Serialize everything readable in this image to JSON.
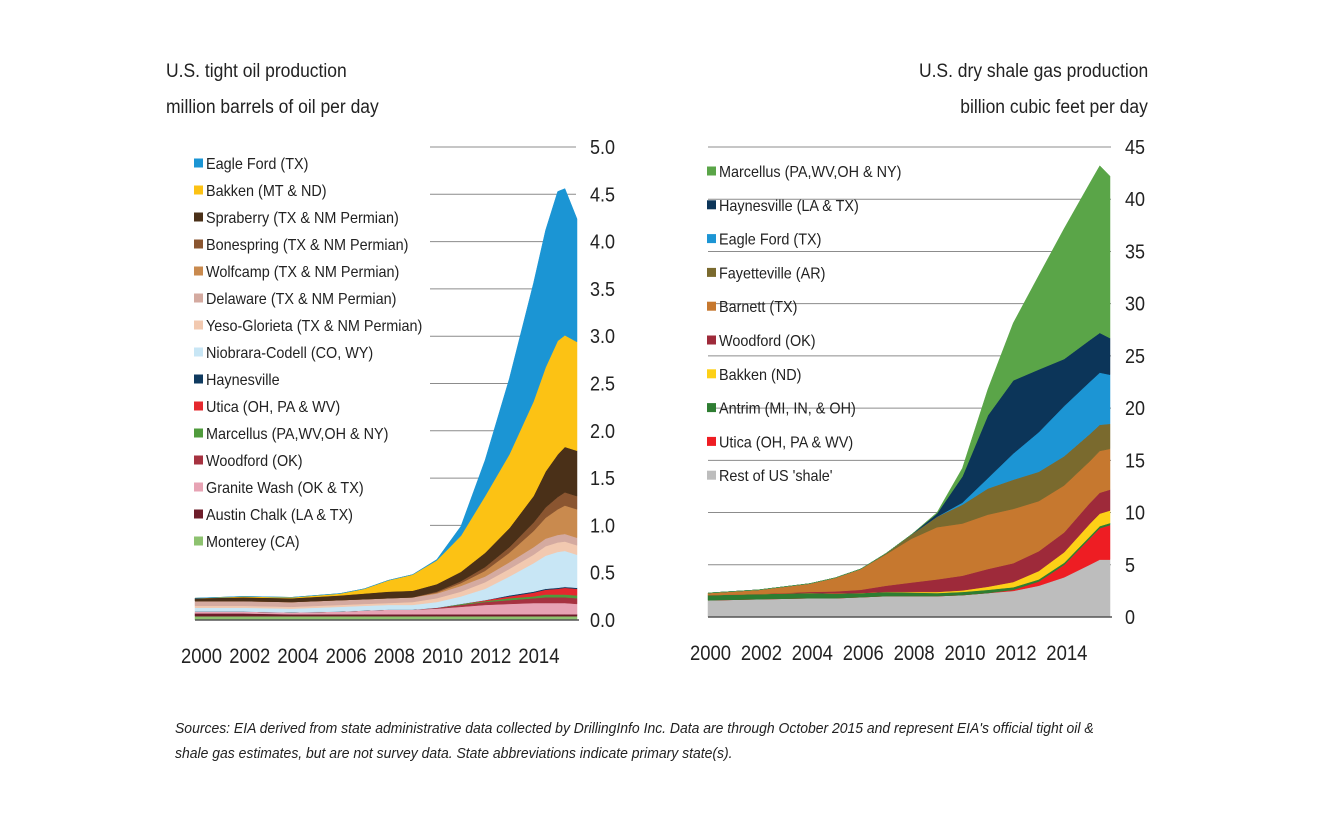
{
  "chart_data": [
    {
      "type": "area",
      "stacked": true,
      "title": "U.S. tight oil production",
      "subtitle": "million barrels of oil per day",
      "ylim": [
        0,
        5.0
      ],
      "y_ticks": [
        "5.0",
        "4.5",
        "4.0",
        "3.5",
        "3.0",
        "2.5",
        "2.0",
        "1.5",
        "1.0",
        "0.5",
        "0.0"
      ],
      "y_axis_side": "right",
      "x_ticks": [
        "2000",
        "2002",
        "2004",
        "2006",
        "2008",
        "2010",
        "2012",
        "2014"
      ],
      "x": [
        2000,
        2002,
        2004,
        2006,
        2007,
        2008,
        2009,
        2010,
        2011,
        2012,
        2013,
        2014,
        2014.5,
        2015,
        2015.3,
        2015.8
      ],
      "legend_position": "top-left",
      "series": [
        {
          "name": "Monterey (CA)",
          "color": "#8dc26f",
          "values": [
            0.04,
            0.04,
            0.04,
            0.04,
            0.04,
            0.04,
            0.04,
            0.04,
            0.04,
            0.04,
            0.04,
            0.04,
            0.04,
            0.04,
            0.04,
            0.04
          ]
        },
        {
          "name": "Austin Chalk (LA & TX)",
          "color": "#6d1d2a",
          "values": [
            0.03,
            0.03,
            0.02,
            0.02,
            0.02,
            0.02,
            0.02,
            0.02,
            0.02,
            0.02,
            0.02,
            0.02,
            0.02,
            0.02,
            0.02,
            0.02
          ]
        },
        {
          "name": "Granite Wash (OK & TX)",
          "color": "#e7a3b4",
          "values": [
            0.02,
            0.02,
            0.02,
            0.03,
            0.04,
            0.05,
            0.05,
            0.06,
            0.08,
            0.1,
            0.11,
            0.12,
            0.12,
            0.12,
            0.12,
            0.11
          ]
        },
        {
          "name": "Woodford (OK)",
          "color": "#a63240",
          "values": [
            0,
            0,
            0,
            0,
            0,
            0,
            0,
            0.01,
            0.02,
            0.03,
            0.04,
            0.05,
            0.06,
            0.06,
            0.06,
            0.06
          ]
        },
        {
          "name": "Marcellus (PA,WV,OH & NY)",
          "color": "#4f9b3c",
          "values": [
            0,
            0,
            0,
            0,
            0,
            0,
            0,
            0,
            0.01,
            0.01,
            0.02,
            0.02,
            0.03,
            0.03,
            0.03,
            0.03
          ]
        },
        {
          "name": "Utica (OH, PA & WV)",
          "color": "#e5282e",
          "values": [
            0,
            0,
            0,
            0,
            0,
            0,
            0,
            0,
            0,
            0.01,
            0.02,
            0.04,
            0.05,
            0.06,
            0.07,
            0.07
          ]
        },
        {
          "name": "Haynesville",
          "color": "#0f3a5f",
          "values": [
            0,
            0,
            0,
            0,
            0,
            0,
            0,
            0,
            0,
            0,
            0.01,
            0.01,
            0.01,
            0.01,
            0.01,
            0.01
          ]
        },
        {
          "name": "Niobrara-Codell (CO, WY)",
          "color": "#c8e6f5",
          "values": [
            0.04,
            0.04,
            0.04,
            0.05,
            0.05,
            0.05,
            0.05,
            0.06,
            0.08,
            0.12,
            0.2,
            0.3,
            0.35,
            0.38,
            0.38,
            0.35
          ]
        },
        {
          "name": "Yeso-Glorieta (TX & NM Permian)",
          "color": "#f2c9b0",
          "values": [
            0.02,
            0.02,
            0.02,
            0.02,
            0.02,
            0.02,
            0.03,
            0.04,
            0.05,
            0.07,
            0.08,
            0.09,
            0.1,
            0.1,
            0.1,
            0.1
          ]
        },
        {
          "name": "Delaware (TX & NM Permian)",
          "color": "#d4aaa0",
          "values": [
            0.05,
            0.05,
            0.05,
            0.05,
            0.05,
            0.05,
            0.05,
            0.05,
            0.06,
            0.06,
            0.07,
            0.08,
            0.08,
            0.08,
            0.08,
            0.08
          ]
        },
        {
          "name": "Wolfcamp (TX & NM Permian)",
          "color": "#c98a4e",
          "values": [
            0,
            0,
            0,
            0,
            0,
            0,
            0,
            0.01,
            0.03,
            0.06,
            0.1,
            0.17,
            0.22,
            0.27,
            0.3,
            0.3
          ]
        },
        {
          "name": "Bonespring (TX & NM Permian)",
          "color": "#8a5530",
          "values": [
            0,
            0,
            0,
            0,
            0,
            0,
            0,
            0.01,
            0.02,
            0.04,
            0.06,
            0.09,
            0.11,
            0.13,
            0.14,
            0.14
          ]
        },
        {
          "name": "Spraberry (TX & NM Permian)",
          "color": "#4a3018",
          "values": [
            0.03,
            0.04,
            0.04,
            0.05,
            0.06,
            0.07,
            0.07,
            0.08,
            0.1,
            0.15,
            0.2,
            0.28,
            0.38,
            0.45,
            0.48,
            0.48
          ]
        },
        {
          "name": "Bakken (MT & ND)",
          "color": "#fcc214",
          "values": [
            0,
            0.01,
            0.01,
            0.02,
            0.05,
            0.12,
            0.17,
            0.25,
            0.38,
            0.6,
            0.78,
            1.0,
            1.1,
            1.2,
            1.18,
            1.15
          ]
        },
        {
          "name": "Eagle Ford (TX)",
          "color": "#1b95d4",
          "values": [
            0,
            0,
            0,
            0,
            0,
            0,
            0,
            0.01,
            0.1,
            0.38,
            0.8,
            1.25,
            1.45,
            1.58,
            1.55,
            1.3
          ]
        }
      ]
    },
    {
      "type": "area",
      "stacked": true,
      "title": "U.S. dry shale gas production",
      "subtitle": "billion cubic feet per day",
      "ylim": [
        0,
        45
      ],
      "y_ticks": [
        "45",
        "40",
        "35",
        "30",
        "25",
        "20",
        "15",
        "10",
        "5",
        "0"
      ],
      "y_axis_side": "right",
      "x_ticks": [
        "2000",
        "2002",
        "2004",
        "2006",
        "2008",
        "2010",
        "2012",
        "2014"
      ],
      "x": [
        2000,
        2002,
        2004,
        2005,
        2006,
        2007,
        2008,
        2009,
        2010,
        2011,
        2012,
        2013,
        2014,
        2015,
        2015.4,
        2015.8
      ],
      "legend_position": "top-left",
      "series": [
        {
          "name": "Rest of US 'shale'",
          "color": "#bdbdbd",
          "values": [
            1.6,
            1.7,
            1.8,
            1.8,
            1.9,
            2.0,
            2.0,
            2.0,
            2.1,
            2.3,
            2.5,
            3.0,
            3.8,
            5.0,
            5.5,
            5.5
          ]
        },
        {
          "name": "Utica (OH, PA & WV)",
          "color": "#ee1d23",
          "values": [
            0,
            0,
            0,
            0,
            0,
            0,
            0,
            0,
            0,
            0,
            0.1,
            0.4,
            1.2,
            2.5,
            3.0,
            3.3
          ]
        },
        {
          "name": "Antrim (MI, IN, & OH)",
          "color": "#2e7d32",
          "values": [
            0.5,
            0.5,
            0.5,
            0.45,
            0.4,
            0.4,
            0.35,
            0.3,
            0.3,
            0.3,
            0.25,
            0.2,
            0.2,
            0.2,
            0.2,
            0.2
          ]
        },
        {
          "name": "Bakken (ND)",
          "color": "#fdd017",
          "values": [
            0,
            0,
            0,
            0,
            0,
            0,
            0.05,
            0.1,
            0.15,
            0.3,
            0.5,
            0.8,
            1.0,
            1.2,
            1.2,
            1.2
          ]
        },
        {
          "name": "Woodford (OK)",
          "color": "#9e2a3a",
          "values": [
            0,
            0,
            0.1,
            0.2,
            0.3,
            0.6,
            0.9,
            1.2,
            1.4,
            1.7,
            1.8,
            1.9,
            1.9,
            2.0,
            2.0,
            2.0
          ]
        },
        {
          "name": "Barnett (TX)",
          "color": "#c6782f",
          "values": [
            0.2,
            0.4,
            0.8,
            1.3,
            2.0,
            3.0,
            4.2,
            5.0,
            5.0,
            5.2,
            5.2,
            4.8,
            4.5,
            4.0,
            4.0,
            3.9
          ]
        },
        {
          "name": "Fayetteville (AR)",
          "color": "#7a6a2e",
          "values": [
            0,
            0,
            0,
            0,
            0,
            0.1,
            0.4,
            1.0,
            1.8,
            2.5,
            2.8,
            2.8,
            2.8,
            2.6,
            2.5,
            2.4
          ]
        },
        {
          "name": "Eagle Ford (TX)",
          "color": "#1c95d4",
          "values": [
            0,
            0,
            0,
            0,
            0,
            0,
            0,
            0,
            0.2,
            1.0,
            2.5,
            3.8,
            4.8,
            5.0,
            5.0,
            4.7
          ]
        },
        {
          "name": "Haynesville (LA & TX)",
          "color": "#0c3559",
          "values": [
            0,
            0,
            0,
            0,
            0,
            0,
            0,
            0.3,
            2.5,
            6.0,
            7.0,
            6.0,
            4.5,
            4.0,
            3.8,
            3.5
          ]
        },
        {
          "name": "Marcellus (PA,WV,OH & NY)",
          "color": "#5aa548",
          "values": [
            0,
            0,
            0,
            0,
            0,
            0,
            0,
            0.1,
            0.8,
            2.5,
            5.5,
            9.0,
            12.5,
            15.0,
            16.0,
            15.5
          ]
        }
      ]
    }
  ],
  "source_note": "Sources: EIA derived from state administrative data collected by DrillingInfo Inc. Data are through October 2015  and represent EIA's official tight oil & shale gas estimates, but are not survey data. State abbreviations indicate primary state(s)."
}
